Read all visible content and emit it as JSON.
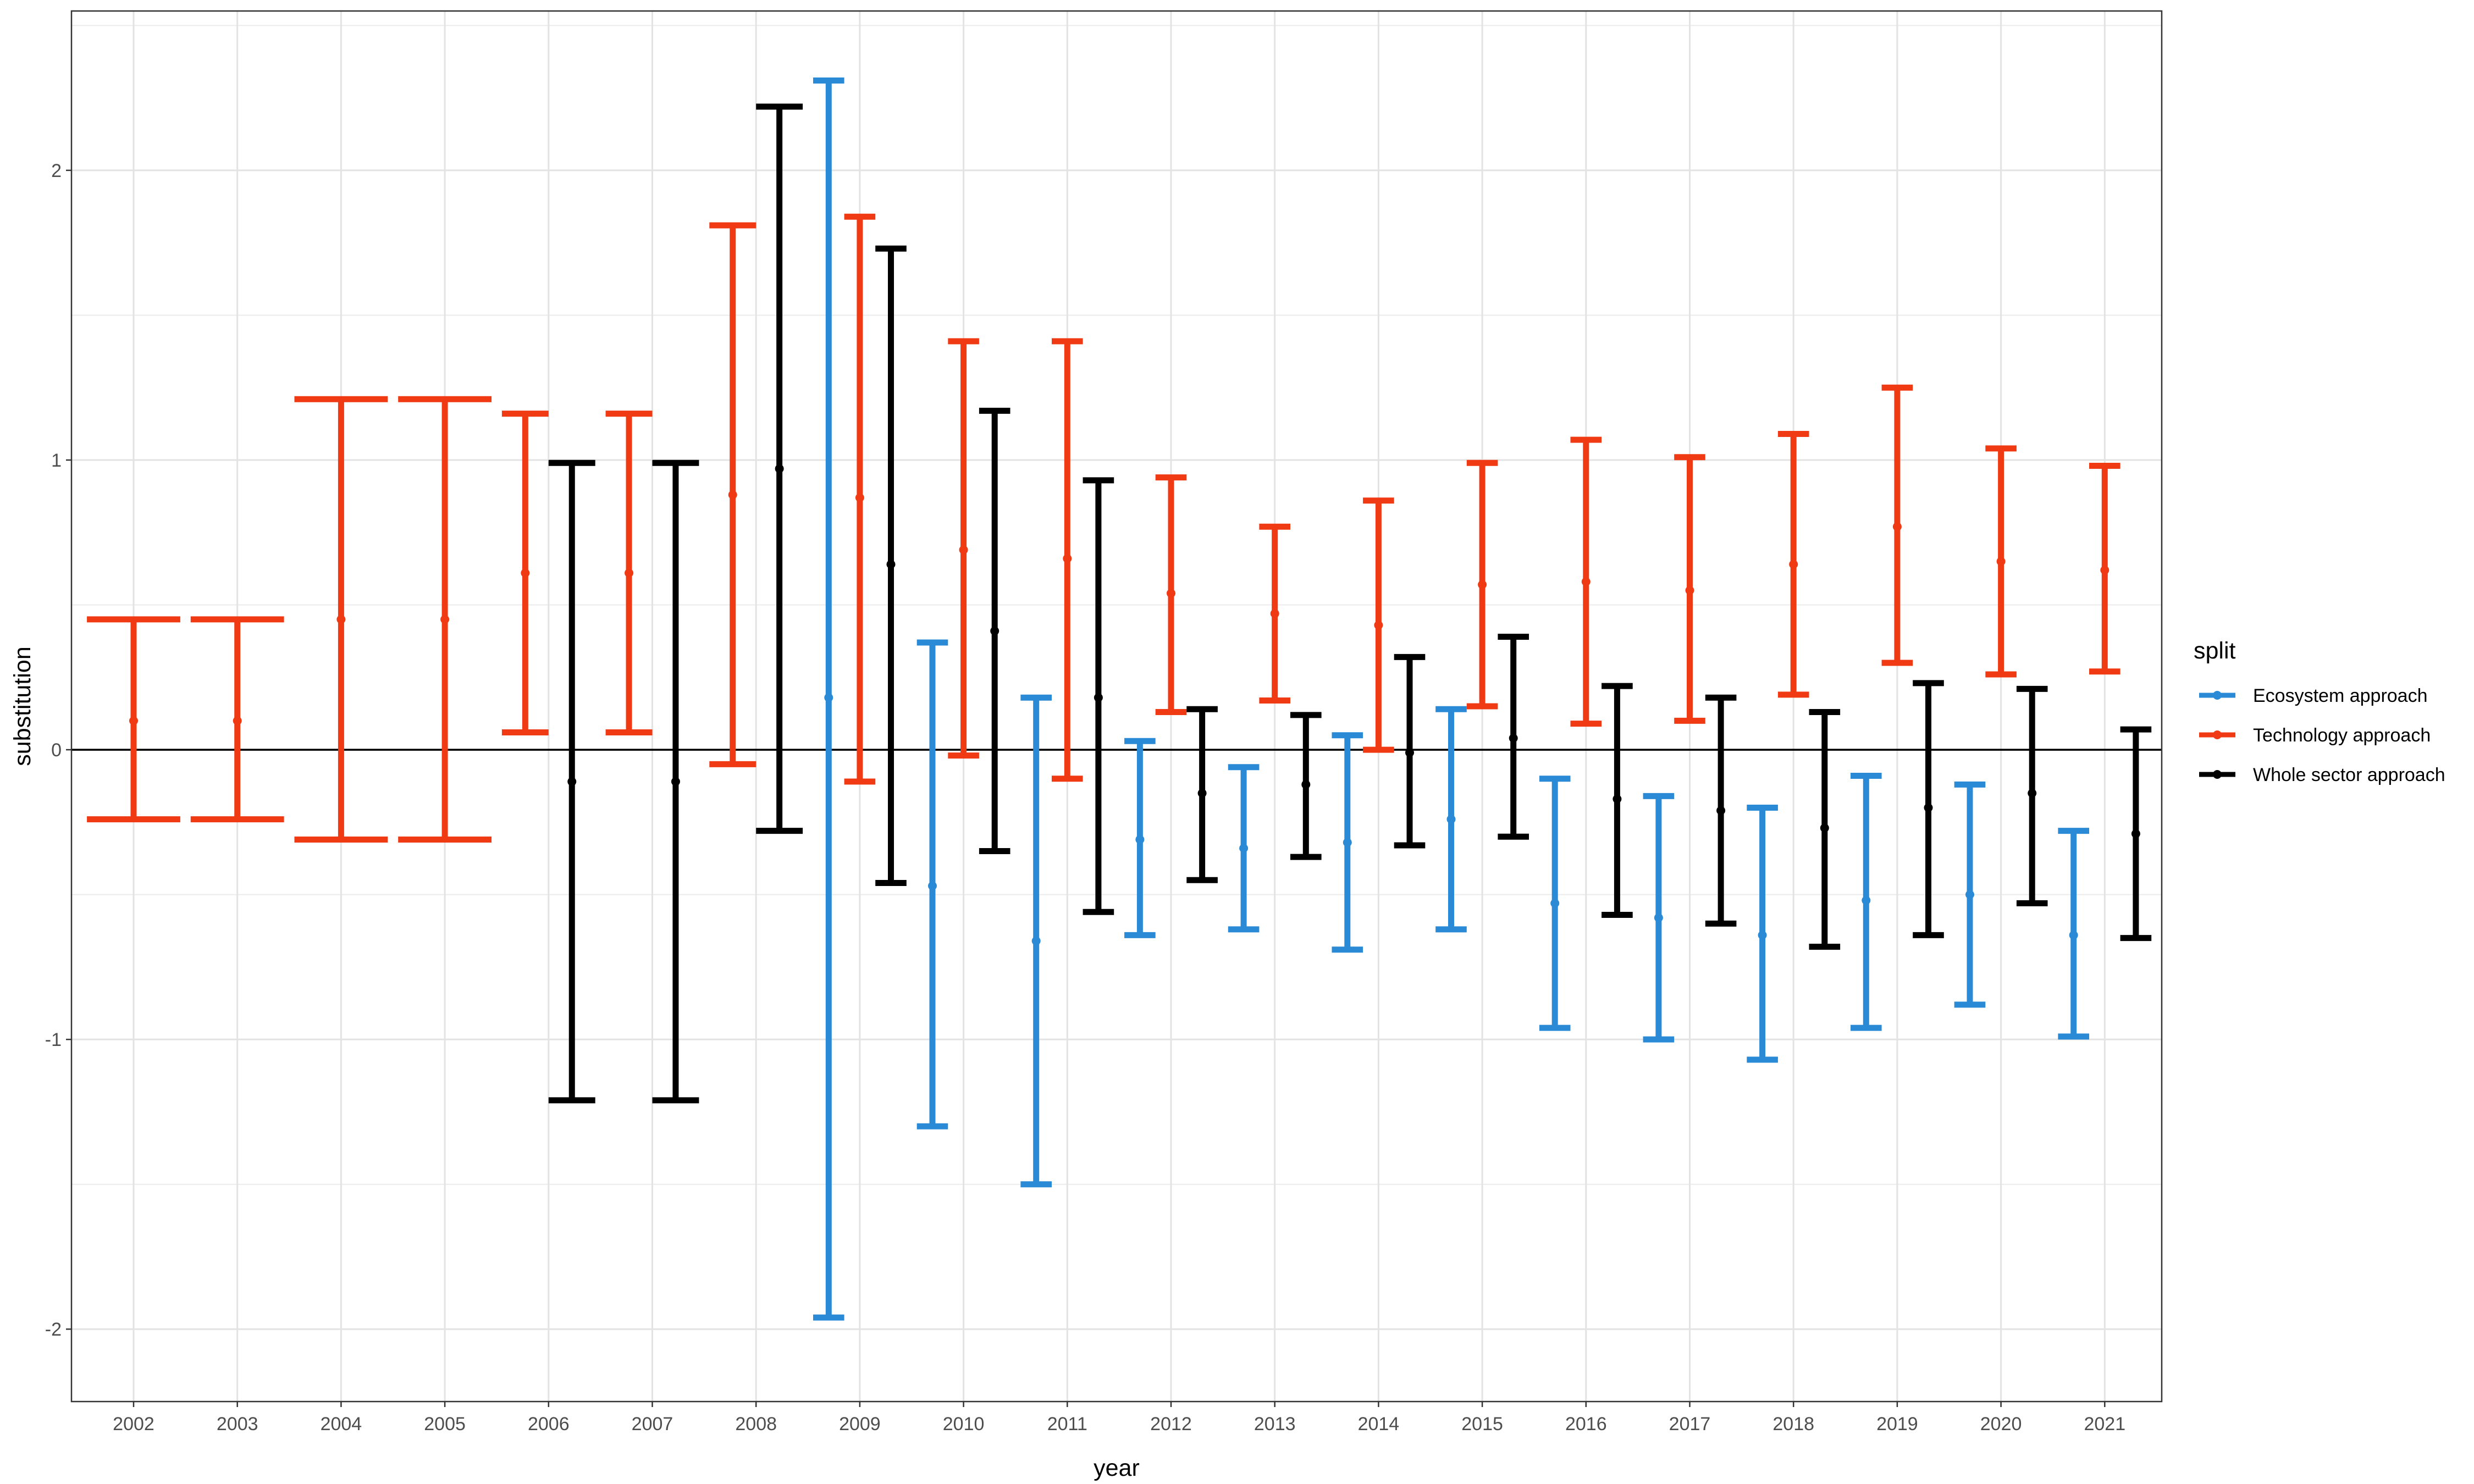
{
  "chart_data": {
    "type": "errorbar",
    "xlabel": "year",
    "ylabel": "substitution",
    "ylim": [
      -2.25,
      2.55
    ],
    "yticks": [
      -2,
      -1,
      0,
      1,
      2
    ],
    "ytick_labels": [
      "-2",
      "-1",
      "0",
      "1",
      "2"
    ],
    "grid": true,
    "reference_line_y": 0,
    "legend": {
      "title": "split",
      "position": "right"
    },
    "categories": [
      "2002",
      "2003",
      "2004",
      "2005",
      "2006",
      "2007",
      "2008",
      "2009",
      "2010",
      "2011",
      "2012",
      "2013",
      "2014",
      "2015",
      "2016",
      "2017",
      "2018",
      "2019",
      "2020",
      "2021"
    ],
    "series": [
      {
        "name": "Ecosystem approach",
        "color": "#2b8ad6",
        "points": [
          {
            "year": "2009",
            "y": 0.18,
            "lo": -1.96,
            "hi": 2.31
          },
          {
            "year": "2010",
            "y": -0.47,
            "lo": -1.3,
            "hi": 0.37
          },
          {
            "year": "2011",
            "y": -0.66,
            "lo": -1.5,
            "hi": 0.18
          },
          {
            "year": "2012",
            "y": -0.31,
            "lo": -0.64,
            "hi": 0.03
          },
          {
            "year": "2013",
            "y": -0.34,
            "lo": -0.62,
            "hi": -0.06
          },
          {
            "year": "2014",
            "y": -0.32,
            "lo": -0.69,
            "hi": 0.05
          },
          {
            "year": "2015",
            "y": -0.24,
            "lo": -0.62,
            "hi": 0.14
          },
          {
            "year": "2016",
            "y": -0.53,
            "lo": -0.96,
            "hi": -0.1
          },
          {
            "year": "2017",
            "y": -0.58,
            "lo": -1.0,
            "hi": -0.16
          },
          {
            "year": "2018",
            "y": -0.64,
            "lo": -1.07,
            "hi": -0.2
          },
          {
            "year": "2019",
            "y": -0.52,
            "lo": -0.96,
            "hi": -0.09
          },
          {
            "year": "2020",
            "y": -0.5,
            "lo": -0.88,
            "hi": -0.12
          },
          {
            "year": "2021",
            "y": -0.64,
            "lo": -0.99,
            "hi": -0.28
          }
        ]
      },
      {
        "name": "Technology approach",
        "color": "#f03a14",
        "points": [
          {
            "year": "2002",
            "y": 0.1,
            "lo": -0.24,
            "hi": 0.45
          },
          {
            "year": "2003",
            "y": 0.1,
            "lo": -0.24,
            "hi": 0.45
          },
          {
            "year": "2004",
            "y": 0.45,
            "lo": -0.31,
            "hi": 1.21
          },
          {
            "year": "2005",
            "y": 0.45,
            "lo": -0.31,
            "hi": 1.21
          },
          {
            "year": "2006",
            "y": 0.61,
            "lo": 0.06,
            "hi": 1.16
          },
          {
            "year": "2007",
            "y": 0.61,
            "lo": 0.06,
            "hi": 1.16
          },
          {
            "year": "2008",
            "y": 0.88,
            "lo": -0.05,
            "hi": 1.81
          },
          {
            "year": "2009",
            "y": 0.87,
            "lo": -0.11,
            "hi": 1.84
          },
          {
            "year": "2010",
            "y": 0.69,
            "lo": -0.02,
            "hi": 1.41
          },
          {
            "year": "2011",
            "y": 0.66,
            "lo": -0.1,
            "hi": 1.41
          },
          {
            "year": "2012",
            "y": 0.54,
            "lo": 0.13,
            "hi": 0.94
          },
          {
            "year": "2013",
            "y": 0.47,
            "lo": 0.17,
            "hi": 0.77
          },
          {
            "year": "2014",
            "y": 0.43,
            "lo": 0.0,
            "hi": 0.86
          },
          {
            "year": "2015",
            "y": 0.57,
            "lo": 0.15,
            "hi": 0.99
          },
          {
            "year": "2016",
            "y": 0.58,
            "lo": 0.09,
            "hi": 1.07
          },
          {
            "year": "2017",
            "y": 0.55,
            "lo": 0.1,
            "hi": 1.01
          },
          {
            "year": "2018",
            "y": 0.64,
            "lo": 0.19,
            "hi": 1.09
          },
          {
            "year": "2019",
            "y": 0.77,
            "lo": 0.3,
            "hi": 1.25
          },
          {
            "year": "2020",
            "y": 0.65,
            "lo": 0.26,
            "hi": 1.04
          },
          {
            "year": "2021",
            "y": 0.62,
            "lo": 0.27,
            "hi": 0.98
          }
        ]
      },
      {
        "name": "Whole sector approach",
        "color": "#000000",
        "points": [
          {
            "year": "2006",
            "y": -0.11,
            "lo": -1.21,
            "hi": 0.99
          },
          {
            "year": "2007",
            "y": -0.11,
            "lo": -1.21,
            "hi": 0.99
          },
          {
            "year": "2008",
            "y": 0.97,
            "lo": -0.28,
            "hi": 2.22
          },
          {
            "year": "2009",
            "y": 0.64,
            "lo": -0.46,
            "hi": 1.73
          },
          {
            "year": "2010",
            "y": 0.41,
            "lo": -0.35,
            "hi": 1.17
          },
          {
            "year": "2011",
            "y": 0.18,
            "lo": -0.56,
            "hi": 0.93
          },
          {
            "year": "2012",
            "y": -0.15,
            "lo": -0.45,
            "hi": 0.14
          },
          {
            "year": "2013",
            "y": -0.12,
            "lo": -0.37,
            "hi": 0.12
          },
          {
            "year": "2014",
            "y": -0.01,
            "lo": -0.33,
            "hi": 0.32
          },
          {
            "year": "2015",
            "y": 0.04,
            "lo": -0.3,
            "hi": 0.39
          },
          {
            "year": "2016",
            "y": -0.17,
            "lo": -0.57,
            "hi": 0.22
          },
          {
            "year": "2017",
            "y": -0.21,
            "lo": -0.6,
            "hi": 0.18
          },
          {
            "year": "2018",
            "y": -0.27,
            "lo": -0.68,
            "hi": 0.13
          },
          {
            "year": "2019",
            "y": -0.2,
            "lo": -0.64,
            "hi": 0.23
          },
          {
            "year": "2020",
            "y": -0.15,
            "lo": -0.53,
            "hi": 0.21
          },
          {
            "year": "2021",
            "y": -0.29,
            "lo": -0.65,
            "hi": 0.07
          }
        ]
      }
    ]
  }
}
